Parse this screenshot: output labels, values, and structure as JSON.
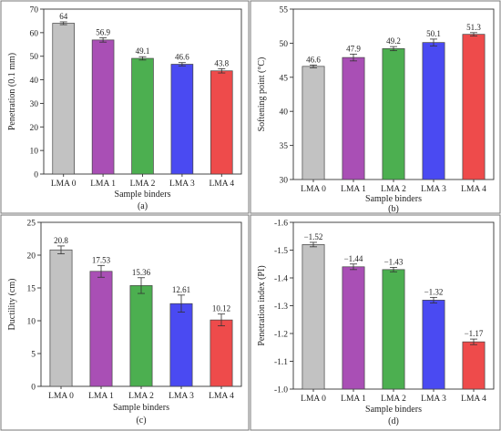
{
  "chart_data": [
    {
      "type": "bar",
      "panel_label": "(a)",
      "categories": [
        "LMA 0",
        "LMA 1",
        "LMA 2",
        "LMA 3",
        "LMA 4"
      ],
      "values": [
        64,
        56.9,
        49.1,
        46.6,
        43.8
      ],
      "errors": [
        0.6,
        0.9,
        0.7,
        0.7,
        0.9
      ],
      "value_labels": [
        "64",
        "56.9",
        "49.1",
        "46.6",
        "43.8"
      ],
      "xlabel": "Sample binders",
      "ylabel": "Penetration (0.1 mm)",
      "ylim": [
        0,
        70
      ],
      "yticks": [
        0,
        10,
        20,
        30,
        40,
        50,
        60,
        70
      ],
      "ytick_labels": [
        "0",
        "10",
        "20",
        "30",
        "40",
        "50",
        "60",
        "70"
      ],
      "colors": [
        "#c2c2c2",
        "#a94fb5",
        "#4caf50",
        "#4a4af2",
        "#ee4b4b"
      ]
    },
    {
      "type": "bar",
      "panel_label": "(b)",
      "categories": [
        "LMA 0",
        "LMA 1",
        "LMA 2",
        "LMA 3",
        "LMA 4"
      ],
      "values": [
        46.6,
        47.9,
        49.2,
        50.1,
        51.3
      ],
      "errors": [
        0.2,
        0.5,
        0.3,
        0.5,
        0.25
      ],
      "value_labels": [
        "46.6",
        "47.9",
        "49.2",
        "50.1",
        "51.3"
      ],
      "xlabel": "Sample binders",
      "ylabel": "Softening point (°C)",
      "ylim": [
        30,
        55
      ],
      "yticks": [
        30,
        35,
        40,
        45,
        50,
        55
      ],
      "ytick_labels": [
        "30",
        "35",
        "40",
        "45",
        "50",
        "55"
      ],
      "colors": [
        "#c2c2c2",
        "#a94fb5",
        "#4caf50",
        "#4a4af2",
        "#ee4b4b"
      ]
    },
    {
      "type": "bar",
      "panel_label": "(c)",
      "categories": [
        "LMA 0",
        "LMA 1",
        "LMA 2",
        "LMA 3",
        "LMA 4"
      ],
      "values": [
        20.8,
        17.53,
        15.36,
        12.61,
        10.12
      ],
      "errors": [
        0.6,
        0.9,
        1.2,
        1.3,
        0.9
      ],
      "value_labels": [
        "20.8",
        "17.53",
        "15.36",
        "12.61",
        "10.12"
      ],
      "xlabel": "Sample binders",
      "ylabel": "Ductility (cm)",
      "ylim": [
        0,
        25
      ],
      "yticks": [
        0,
        5,
        10,
        15,
        20,
        25
      ],
      "ytick_labels": [
        "0",
        "5",
        "10",
        "15",
        "20",
        "25"
      ],
      "colors": [
        "#c2c2c2",
        "#a94fb5",
        "#4caf50",
        "#4a4af2",
        "#ee4b4b"
      ]
    },
    {
      "type": "bar",
      "panel_label": "(d)",
      "categories": [
        "LMA 0",
        "LMA 1",
        "LMA 2",
        "LMA 3",
        "LMA 4"
      ],
      "values": [
        -1.52,
        -1.44,
        -1.43,
        -1.32,
        -1.17
      ],
      "errors": [
        0.008,
        0.01,
        0.008,
        0.01,
        0.01
      ],
      "value_labels": [
        "−1.52",
        "−1.44",
        "−1.43",
        "−1.32",
        "−1.17"
      ],
      "xlabel": "Sample binders",
      "ylabel": "Penetration index (PI)",
      "ylim": [
        -1.0,
        -1.6
      ],
      "inverted_axis": true,
      "yticks": [
        -1.0,
        -1.1,
        -1.2,
        -1.3,
        -1.4,
        -1.5,
        -1.6
      ],
      "ytick_labels": [
        "-1.0",
        "-1.1",
        "-1.2",
        "-1.3",
        "-1.4",
        "-1.5",
        "-1.6"
      ],
      "colors": [
        "#c2c2c2",
        "#a94fb5",
        "#4caf50",
        "#4a4af2",
        "#ee4b4b"
      ]
    }
  ]
}
